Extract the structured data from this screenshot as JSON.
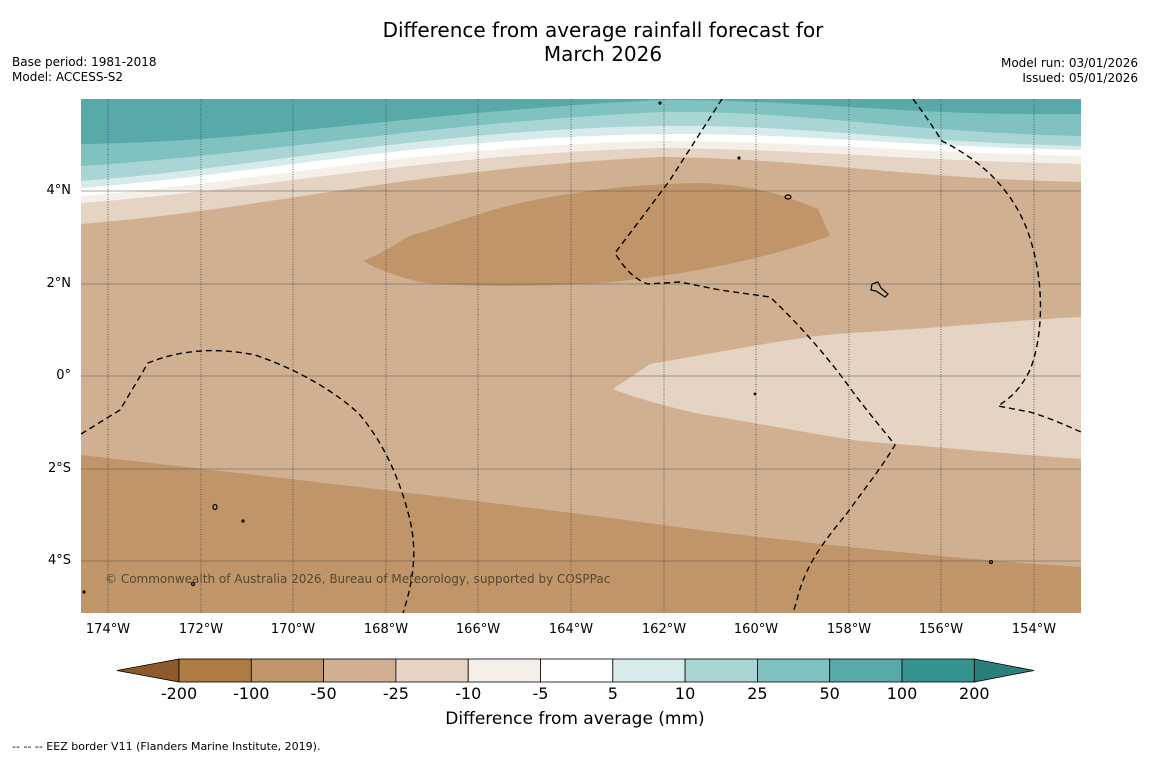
{
  "title_line1": "Difference from average rainfall forecast for",
  "title_line2": "March 2026",
  "base_period": "Base period: 1981-2018",
  "model": "Model: ACCESS-S2",
  "model_run": "Model run: 03/01/2026",
  "issued": "Issued: 05/01/2026",
  "copyright": "© Commonwealth of Australia 2026, Bureau of Meteorology, supported by COSPPac",
  "lat_labels": [
    "4°N",
    "2°N",
    "0°",
    "2°S",
    "4°S"
  ],
  "lon_labels": [
    "174°W",
    "172°W",
    "170°W",
    "168°W",
    "166°W",
    "164°W",
    "162°W",
    "160°W",
    "158°W",
    "156°W",
    "154°W"
  ],
  "colorbar": {
    "title": "Difference from average (mm)",
    "ticks": [
      "-200",
      "-100",
      "-50",
      "-25",
      "-10",
      "-5",
      "5",
      "10",
      "25",
      "50",
      "100",
      "200"
    ],
    "colors": [
      "#8c5a2b",
      "#b07a45",
      "#c0956a",
      "#d1b092",
      "#e5d3c3",
      "#f5efea",
      "#ffffff",
      "#d6ebea",
      "#a9d6d5",
      "#80c2c0",
      "#58aaa8",
      "#35948f",
      "#2b7f7a"
    ]
  },
  "footnote": "--  --  -- EEZ border V11 (Flanders Marine Institute, 2019)."
}
